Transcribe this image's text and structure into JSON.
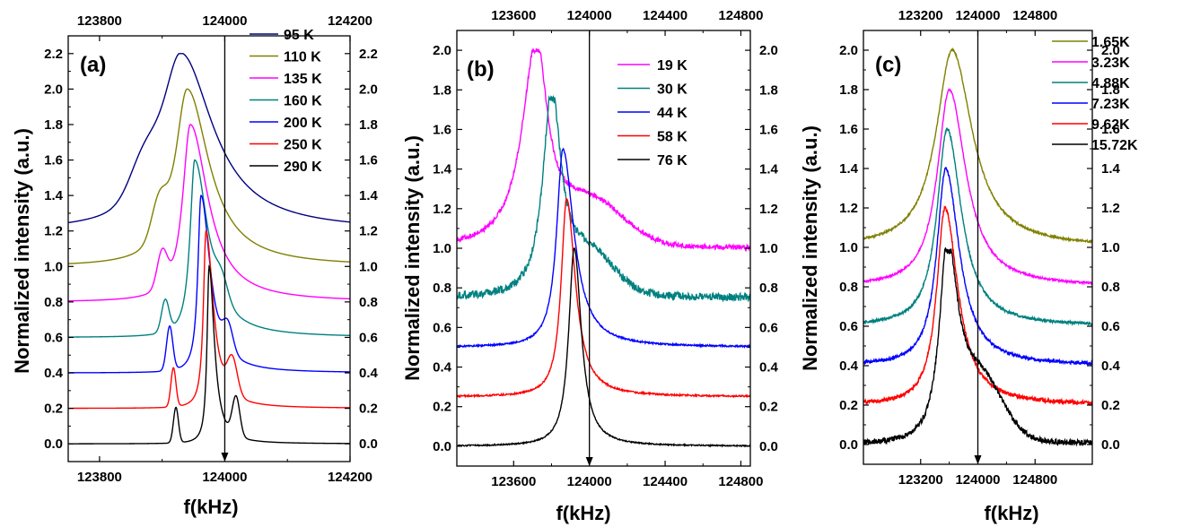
{
  "chart_data": [
    {
      "type": "line",
      "panel_label": "(a)",
      "xlabel": "f(kHz)",
      "ylabel": "Normalized intensity (a.u.)",
      "xlim": [
        123750,
        124200
      ],
      "ylim": [
        -0.1,
        2.3
      ],
      "x_ticks_bottom": [
        123800,
        124000,
        124200
      ],
      "x_ticks_top": [
        123800,
        124000,
        124200
      ],
      "y_ticks": [
        0.0,
        0.2,
        0.4,
        0.6,
        0.8,
        1.0,
        1.2,
        1.4,
        1.6,
        1.8,
        2.0,
        2.2
      ],
      "tick_labels": {
        "x_bottom": [
          "123800",
          "124000",
          "124200"
        ],
        "x_top": [
          "123800",
          "124000",
          "124200"
        ],
        "y": [
          "0.0",
          "0.2",
          "0.4",
          "0.6",
          "0.8",
          "1.0",
          "1.2",
          "1.4",
          "1.6",
          "1.8",
          "2.0",
          "2.2"
        ]
      },
      "arrow_x": 124000,
      "legend_position": "top-right",
      "series": [
        {
          "name": "95 K",
          "color": "#000080",
          "offset": 1.2,
          "peak_x": 123930,
          "peak_height": 1.0,
          "hw_left": 40,
          "hw_right": 62,
          "shoulders": [
            [
              123870,
              0.18,
              22
            ]
          ],
          "noise": 0
        },
        {
          "name": "110 K",
          "color": "#808000",
          "offset": 1.0,
          "peak_x": 123940,
          "peak_height": 1.0,
          "hw_left": 24,
          "hw_right": 42,
          "shoulders": [
            [
              123895,
              0.2,
              12
            ]
          ],
          "noise": 0
        },
        {
          "name": "135 K",
          "color": "#FF00FF",
          "offset": 0.8,
          "peak_x": 123945,
          "peak_height": 1.0,
          "hw_left": 15,
          "hw_right": 34,
          "shoulders": [
            [
              123900,
              0.2,
              8
            ]
          ],
          "noise": 0
        },
        {
          "name": "160 K",
          "color": "#008080",
          "offset": 0.6,
          "peak_x": 123952,
          "peak_height": 1.0,
          "hw_left": 9,
          "hw_right": 26,
          "shoulders": [
            [
              123905,
              0.18,
              6
            ],
            [
              123995,
              0.12,
              10
            ]
          ],
          "noise": 0
        },
        {
          "name": "200 K",
          "color": "#0000FF",
          "offset": 0.4,
          "peak_x": 123962,
          "peak_height": 1.0,
          "hw_left": 6,
          "hw_right": 18,
          "shoulders": [
            [
              123912,
              0.25,
              5
            ],
            [
              124005,
              0.15,
              8
            ]
          ],
          "noise": 0
        },
        {
          "name": "250 K",
          "color": "#FF0000",
          "offset": 0.2,
          "peak_x": 123970,
          "peak_height": 1.0,
          "hw_left": 5,
          "hw_right": 14,
          "shoulders": [
            [
              123918,
              0.22,
              4
            ],
            [
              124012,
              0.2,
              8
            ]
          ],
          "noise": 0
        },
        {
          "name": "290 K",
          "color": "#000000",
          "offset": 0.0,
          "peak_x": 123975,
          "peak_height": 1.0,
          "hw_left": 4,
          "hw_right": 10,
          "shoulders": [
            [
              123922,
              0.2,
              4
            ],
            [
              124018,
              0.22,
              6
            ]
          ],
          "noise": 0
        }
      ]
    },
    {
      "type": "line",
      "panel_label": "(b)",
      "xlabel": "f(kHz)",
      "ylabel": "Normalized intensity (a.u.)",
      "xlim": [
        123300,
        124850
      ],
      "ylim": [
        -0.1,
        2.1
      ],
      "x_ticks_bottom": [
        123600,
        124000,
        124400,
        124800
      ],
      "x_ticks_top": [
        123600,
        124000,
        124400,
        124800
      ],
      "y_ticks": [
        0.0,
        0.2,
        0.4,
        0.6,
        0.8,
        1.0,
        1.2,
        1.4,
        1.6,
        1.8,
        2.0
      ],
      "tick_labels": {
        "x_bottom": [
          "123600",
          "124000",
          "124400",
          "124800"
        ],
        "x_top": [
          "123600",
          "124000",
          "124400",
          "124800"
        ],
        "y": [
          "0.0",
          "0.2",
          "0.4",
          "0.6",
          "0.8",
          "1.0",
          "1.2",
          "1.4",
          "1.6",
          "1.8",
          "2.0"
        ]
      },
      "arrow_x": 124000,
      "legend_position": "top-right",
      "series": [
        {
          "name": "19 K",
          "color": "#FF00FF",
          "offset": 1.0,
          "peak_x": 123720,
          "peak_height": 1.0,
          "hw_left": 90,
          "hw_right": 70,
          "shoulders": [
            [
              124000,
              0.22,
              180
            ]
          ],
          "noise": 0.012
        },
        {
          "name": "30 K",
          "color": "#008080",
          "offset": 0.75,
          "peak_x": 123800,
          "peak_height": 1.0,
          "hw_left": 55,
          "hw_right": 60,
          "shoulders": [
            [
              124000,
              0.2,
              130
            ]
          ],
          "noise": 0.02
        },
        {
          "name": "44 K",
          "color": "#0000FF",
          "offset": 0.5,
          "peak_x": 123860,
          "peak_height": 1.0,
          "hw_left": 40,
          "hw_right": 70,
          "shoulders": [],
          "noise": 0.004
        },
        {
          "name": "58 K",
          "color": "#FF0000",
          "offset": 0.25,
          "peak_x": 123880,
          "peak_height": 1.0,
          "hw_left": 35,
          "hw_right": 55,
          "shoulders": [],
          "noise": 0.004
        },
        {
          "name": "76 K",
          "color": "#000000",
          "offset": 0.0,
          "peak_x": 123920,
          "peak_height": 1.0,
          "hw_left": 35,
          "hw_right": 45,
          "shoulders": [],
          "noise": 0.003
        }
      ]
    },
    {
      "type": "line",
      "panel_label": "(c)",
      "xlabel": "f(kHz)",
      "ylabel": "Normalized intensity (a.u.)",
      "xlim": [
        122400,
        125600
      ],
      "ylim": [
        -0.1,
        2.1
      ],
      "x_ticks_bottom": [
        123200,
        124000,
        124800
      ],
      "x_ticks_top": [
        123200,
        124000,
        124800
      ],
      "y_ticks": [
        0.0,
        0.2,
        0.4,
        0.6,
        0.8,
        1.0,
        1.2,
        1.4,
        1.6,
        1.8,
        2.0
      ],
      "tick_labels": {
        "x_bottom": [
          "123200",
          "124000",
          "124800"
        ],
        "x_top": [
          "123200",
          "124000",
          "124800"
        ],
        "y": [
          "0.0",
          "0.2",
          "0.4",
          "0.6",
          "0.8",
          "1.0",
          "1.2",
          "1.4",
          "1.6",
          "1.8",
          "2.0"
        ]
      },
      "arrow_x": 124000,
      "legend_position": "top-right",
      "series": [
        {
          "name": "1.65K",
          "color": "#808000",
          "offset": 1.0,
          "peak_x": 123640,
          "peak_height": 1.0,
          "hw_left": 270,
          "hw_right": 340,
          "shoulders": [],
          "noise": 0.005
        },
        {
          "name": "3.23K",
          "color": "#FF00FF",
          "offset": 0.8,
          "peak_x": 123600,
          "peak_height": 1.0,
          "hw_left": 200,
          "hw_right": 280,
          "shoulders": [],
          "noise": 0.005
        },
        {
          "name": "4.88K",
          "color": "#008080",
          "offset": 0.6,
          "peak_x": 123570,
          "peak_height": 1.0,
          "hw_left": 170,
          "hw_right": 240,
          "shoulders": [],
          "noise": 0.007
        },
        {
          "name": "7.23K",
          "color": "#0000FF",
          "offset": 0.4,
          "peak_x": 123550,
          "peak_height": 1.0,
          "hw_left": 150,
          "hw_right": 230,
          "shoulders": [],
          "noise": 0.008
        },
        {
          "name": "9.62K",
          "color": "#FF0000",
          "offset": 0.2,
          "peak_x": 123540,
          "peak_height": 1.0,
          "hw_left": 140,
          "hw_right": 220,
          "shoulders": [],
          "noise": 0.01
        },
        {
          "name": "15.72K",
          "color": "#000000",
          "offset": 0.0,
          "peak_x": 123570,
          "peak_height": 0.98,
          "hw_left": 130,
          "hw_right": 180,
          "shoulders": [
            [
              124050,
              0.28,
              300
            ]
          ],
          "noise": 0.014
        }
      ]
    }
  ]
}
